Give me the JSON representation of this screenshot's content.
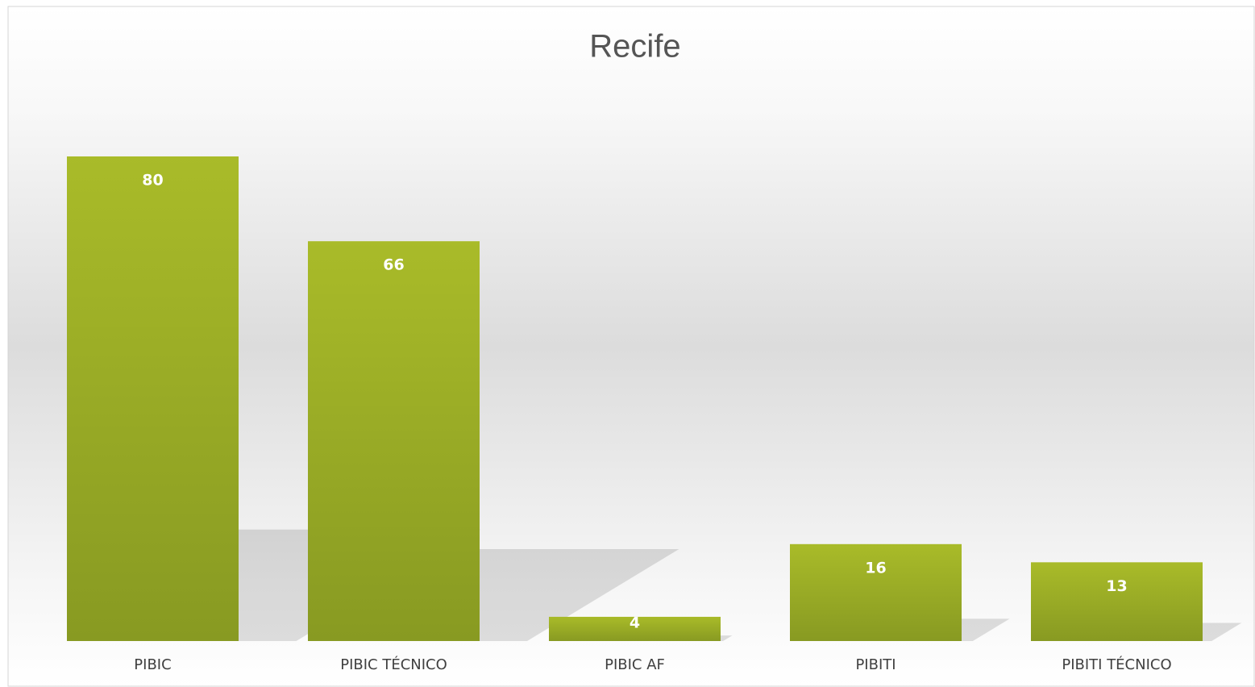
{
  "chart_data": {
    "type": "bar",
    "title": "Recife",
    "categories": [
      "PIBIC",
      "PIBIC TÉCNICO",
      "PIBIC AF",
      "PIBITI",
      "PIBITI TÉCNICO"
    ],
    "values": [
      80,
      66,
      4,
      16,
      13
    ],
    "color": "#9aad25",
    "ylim": [
      0,
      80
    ]
  }
}
